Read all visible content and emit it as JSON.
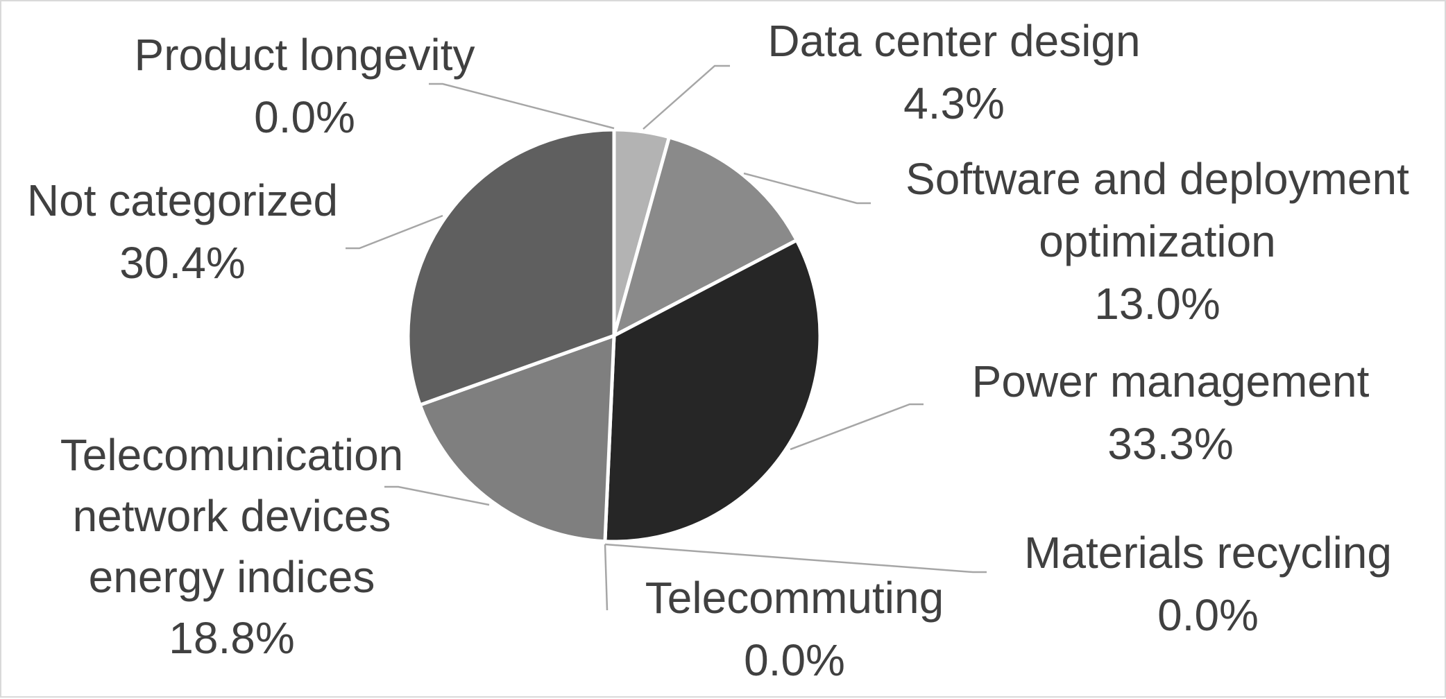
{
  "chart_data": {
    "type": "pie",
    "title": "",
    "slices": [
      {
        "name": "Data center design",
        "label_lines": [
          "Data center design"
        ],
        "value": 4.3,
        "value_label": "4.3%",
        "color": "#b3b3b3"
      },
      {
        "name": "Software and deployment optimization",
        "label_lines": [
          "Software and deployment",
          "optimization"
        ],
        "value": 13.0,
        "value_label": "13.0%",
        "color": "#8a8a8a"
      },
      {
        "name": "Power management",
        "label_lines": [
          "Power management"
        ],
        "value": 33.3,
        "value_label": "33.3%",
        "color": "#262626"
      },
      {
        "name": "Materials recycling",
        "label_lines": [
          "Materials recycling"
        ],
        "value": 0.0,
        "value_label": "0.0%",
        "color": "#d0d0d0"
      },
      {
        "name": "Telecommuting",
        "label_lines": [
          "Telecommuting"
        ],
        "value": 0.0,
        "value_label": "0.0%",
        "color": "#c0c0c0"
      },
      {
        "name": "Telecomunication network devices energy indices",
        "label_lines": [
          "Telecomunication",
          "network devices",
          "energy indices"
        ],
        "value": 18.8,
        "value_label": "18.8%",
        "color": "#7f7f7f"
      },
      {
        "name": "Not categorized",
        "label_lines": [
          "Not categorized"
        ],
        "value": 30.4,
        "value_label": "30.4%",
        "color": "#5f5f5f"
      },
      {
        "name": "Product longevity",
        "label_lines": [
          "Product longevity"
        ],
        "value": 0.0,
        "value_label": "0.0%",
        "color": "#e0e0e0"
      }
    ],
    "legend": "none",
    "data_labels": "category name and percentage, outside with leader lines"
  }
}
